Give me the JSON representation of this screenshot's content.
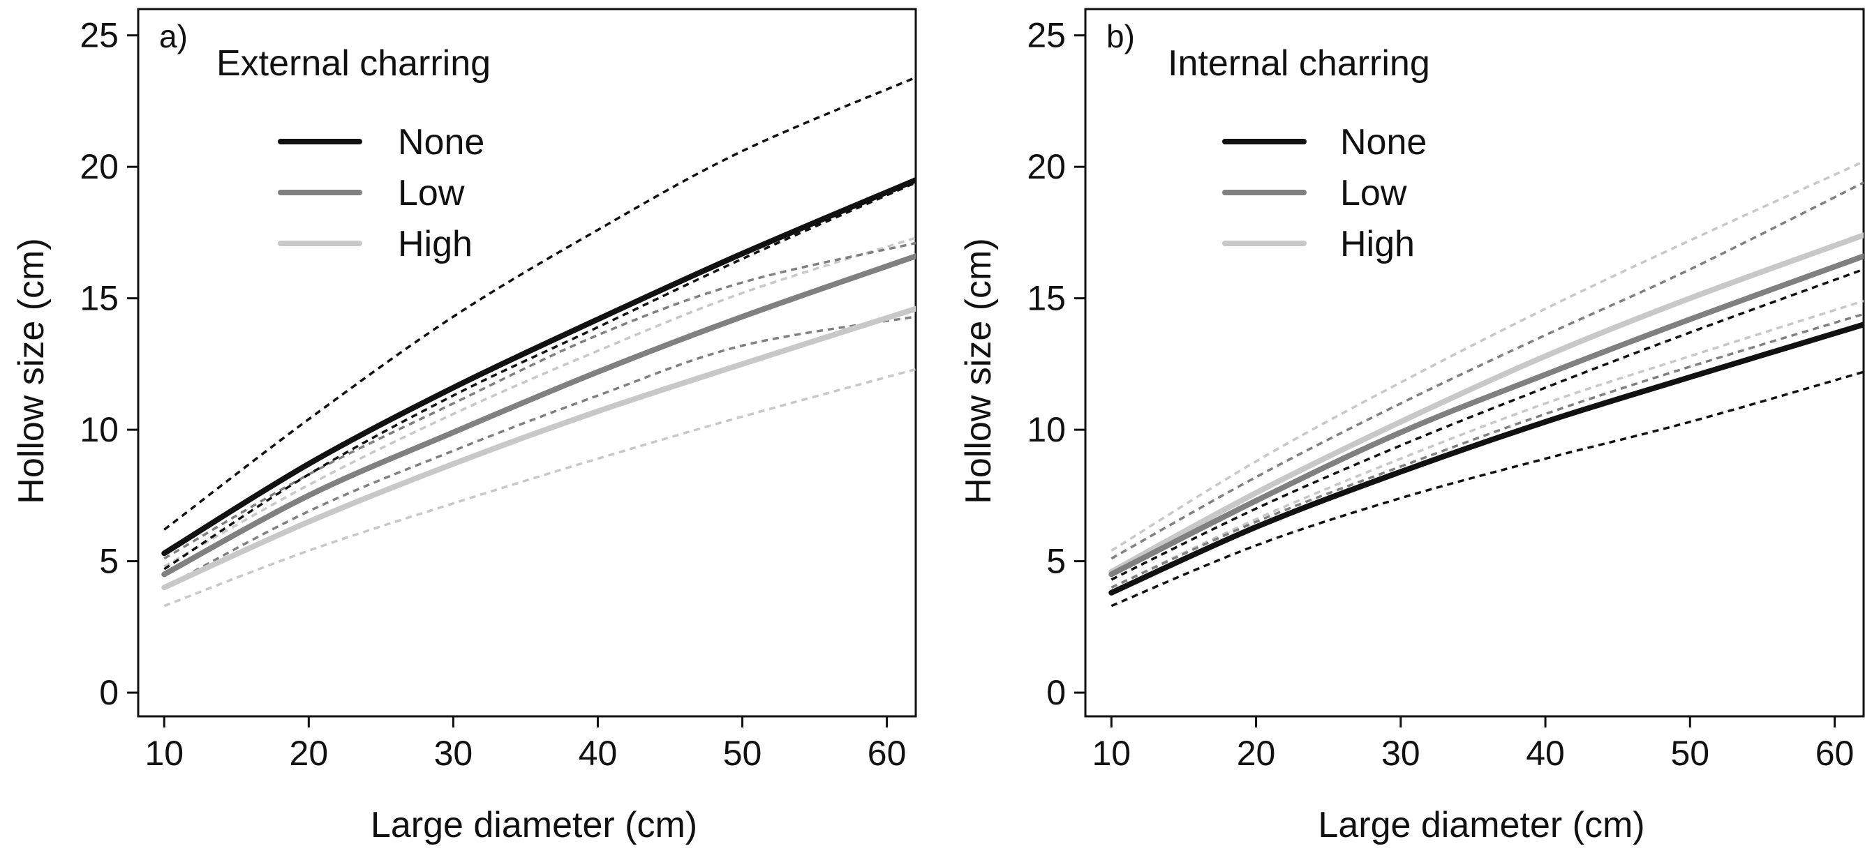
{
  "chart_data": [
    {
      "type": "line",
      "panel_label": "a)",
      "legend_title": "External charring",
      "legend_placement": "top-left",
      "xlabel": "Large diameter (cm)",
      "ylabel": "Hollow size (cm)",
      "xlim": [
        8.2,
        62
      ],
      "ylim": [
        -0.9,
        26
      ],
      "xticks": [
        10,
        20,
        30,
        40,
        50,
        60
      ],
      "yticks": [
        0,
        5,
        10,
        15,
        20,
        25
      ],
      "grid": false,
      "x": [
        10,
        20,
        30,
        40,
        50,
        62
      ],
      "series": [
        {
          "name": "None",
          "color": "#111111",
          "values": [
            5.3,
            8.7,
            11.6,
            14.2,
            16.7,
            19.5
          ],
          "ci_lower": [
            4.7,
            8.3,
            11.3,
            13.9,
            16.5,
            19.4
          ],
          "ci_upper": [
            6.2,
            10.4,
            14.3,
            17.6,
            20.6,
            23.4
          ]
        },
        {
          "name": "Low",
          "color": "#808080",
          "values": [
            4.5,
            7.5,
            9.9,
            12.2,
            14.3,
            16.6
          ],
          "ci_lower": [
            4.0,
            6.9,
            9.2,
            11.3,
            13.2,
            14.3
          ],
          "ci_upper": [
            5.1,
            8.3,
            11.0,
            13.6,
            15.6,
            17.1
          ]
        },
        {
          "name": "High",
          "color": "#c8c8c8",
          "values": [
            4.0,
            6.5,
            8.7,
            10.7,
            12.5,
            14.6
          ],
          "ci_lower": [
            3.3,
            5.4,
            7.2,
            8.9,
            10.5,
            12.3
          ],
          "ci_upper": [
            4.8,
            7.9,
            10.6,
            13.0,
            15.2,
            17.3
          ]
        }
      ]
    },
    {
      "type": "line",
      "panel_label": "b)",
      "legend_title": "Internal charring",
      "legend_placement": "top-left",
      "xlabel": "Large diameter (cm)",
      "ylabel": "Hollow size (cm)",
      "xlim": [
        8.2,
        62
      ],
      "ylim": [
        -0.9,
        26
      ],
      "xticks": [
        10,
        20,
        30,
        40,
        50,
        60
      ],
      "yticks": [
        0,
        5,
        10,
        15,
        20,
        25
      ],
      "grid": false,
      "x": [
        10,
        20,
        30,
        40,
        50,
        62
      ],
      "series": [
        {
          "name": "None",
          "color": "#111111",
          "values": [
            3.8,
            6.3,
            8.4,
            10.3,
            12.0,
            14.0
          ],
          "ci_lower": [
            3.3,
            5.6,
            7.4,
            8.9,
            10.3,
            12.2
          ],
          "ci_upper": [
            4.3,
            7.0,
            9.4,
            11.6,
            13.7,
            16.1
          ]
        },
        {
          "name": "Low",
          "color": "#808080",
          "values": [
            4.5,
            7.3,
            9.9,
            12.1,
            14.2,
            16.6
          ],
          "ci_lower": [
            4.0,
            6.5,
            8.6,
            10.6,
            12.4,
            14.4
          ],
          "ci_upper": [
            5.1,
            8.2,
            11.0,
            13.6,
            16.1,
            19.4
          ]
        },
        {
          "name": "High",
          "color": "#c8c8c8",
          "values": [
            4.6,
            7.6,
            10.3,
            12.8,
            15.0,
            17.4
          ],
          "ci_lower": [
            4.0,
            6.6,
            8.9,
            11.0,
            12.8,
            14.9
          ],
          "ci_upper": [
            5.4,
            8.8,
            11.8,
            14.6,
            17.2,
            20.2
          ]
        }
      ]
    }
  ]
}
